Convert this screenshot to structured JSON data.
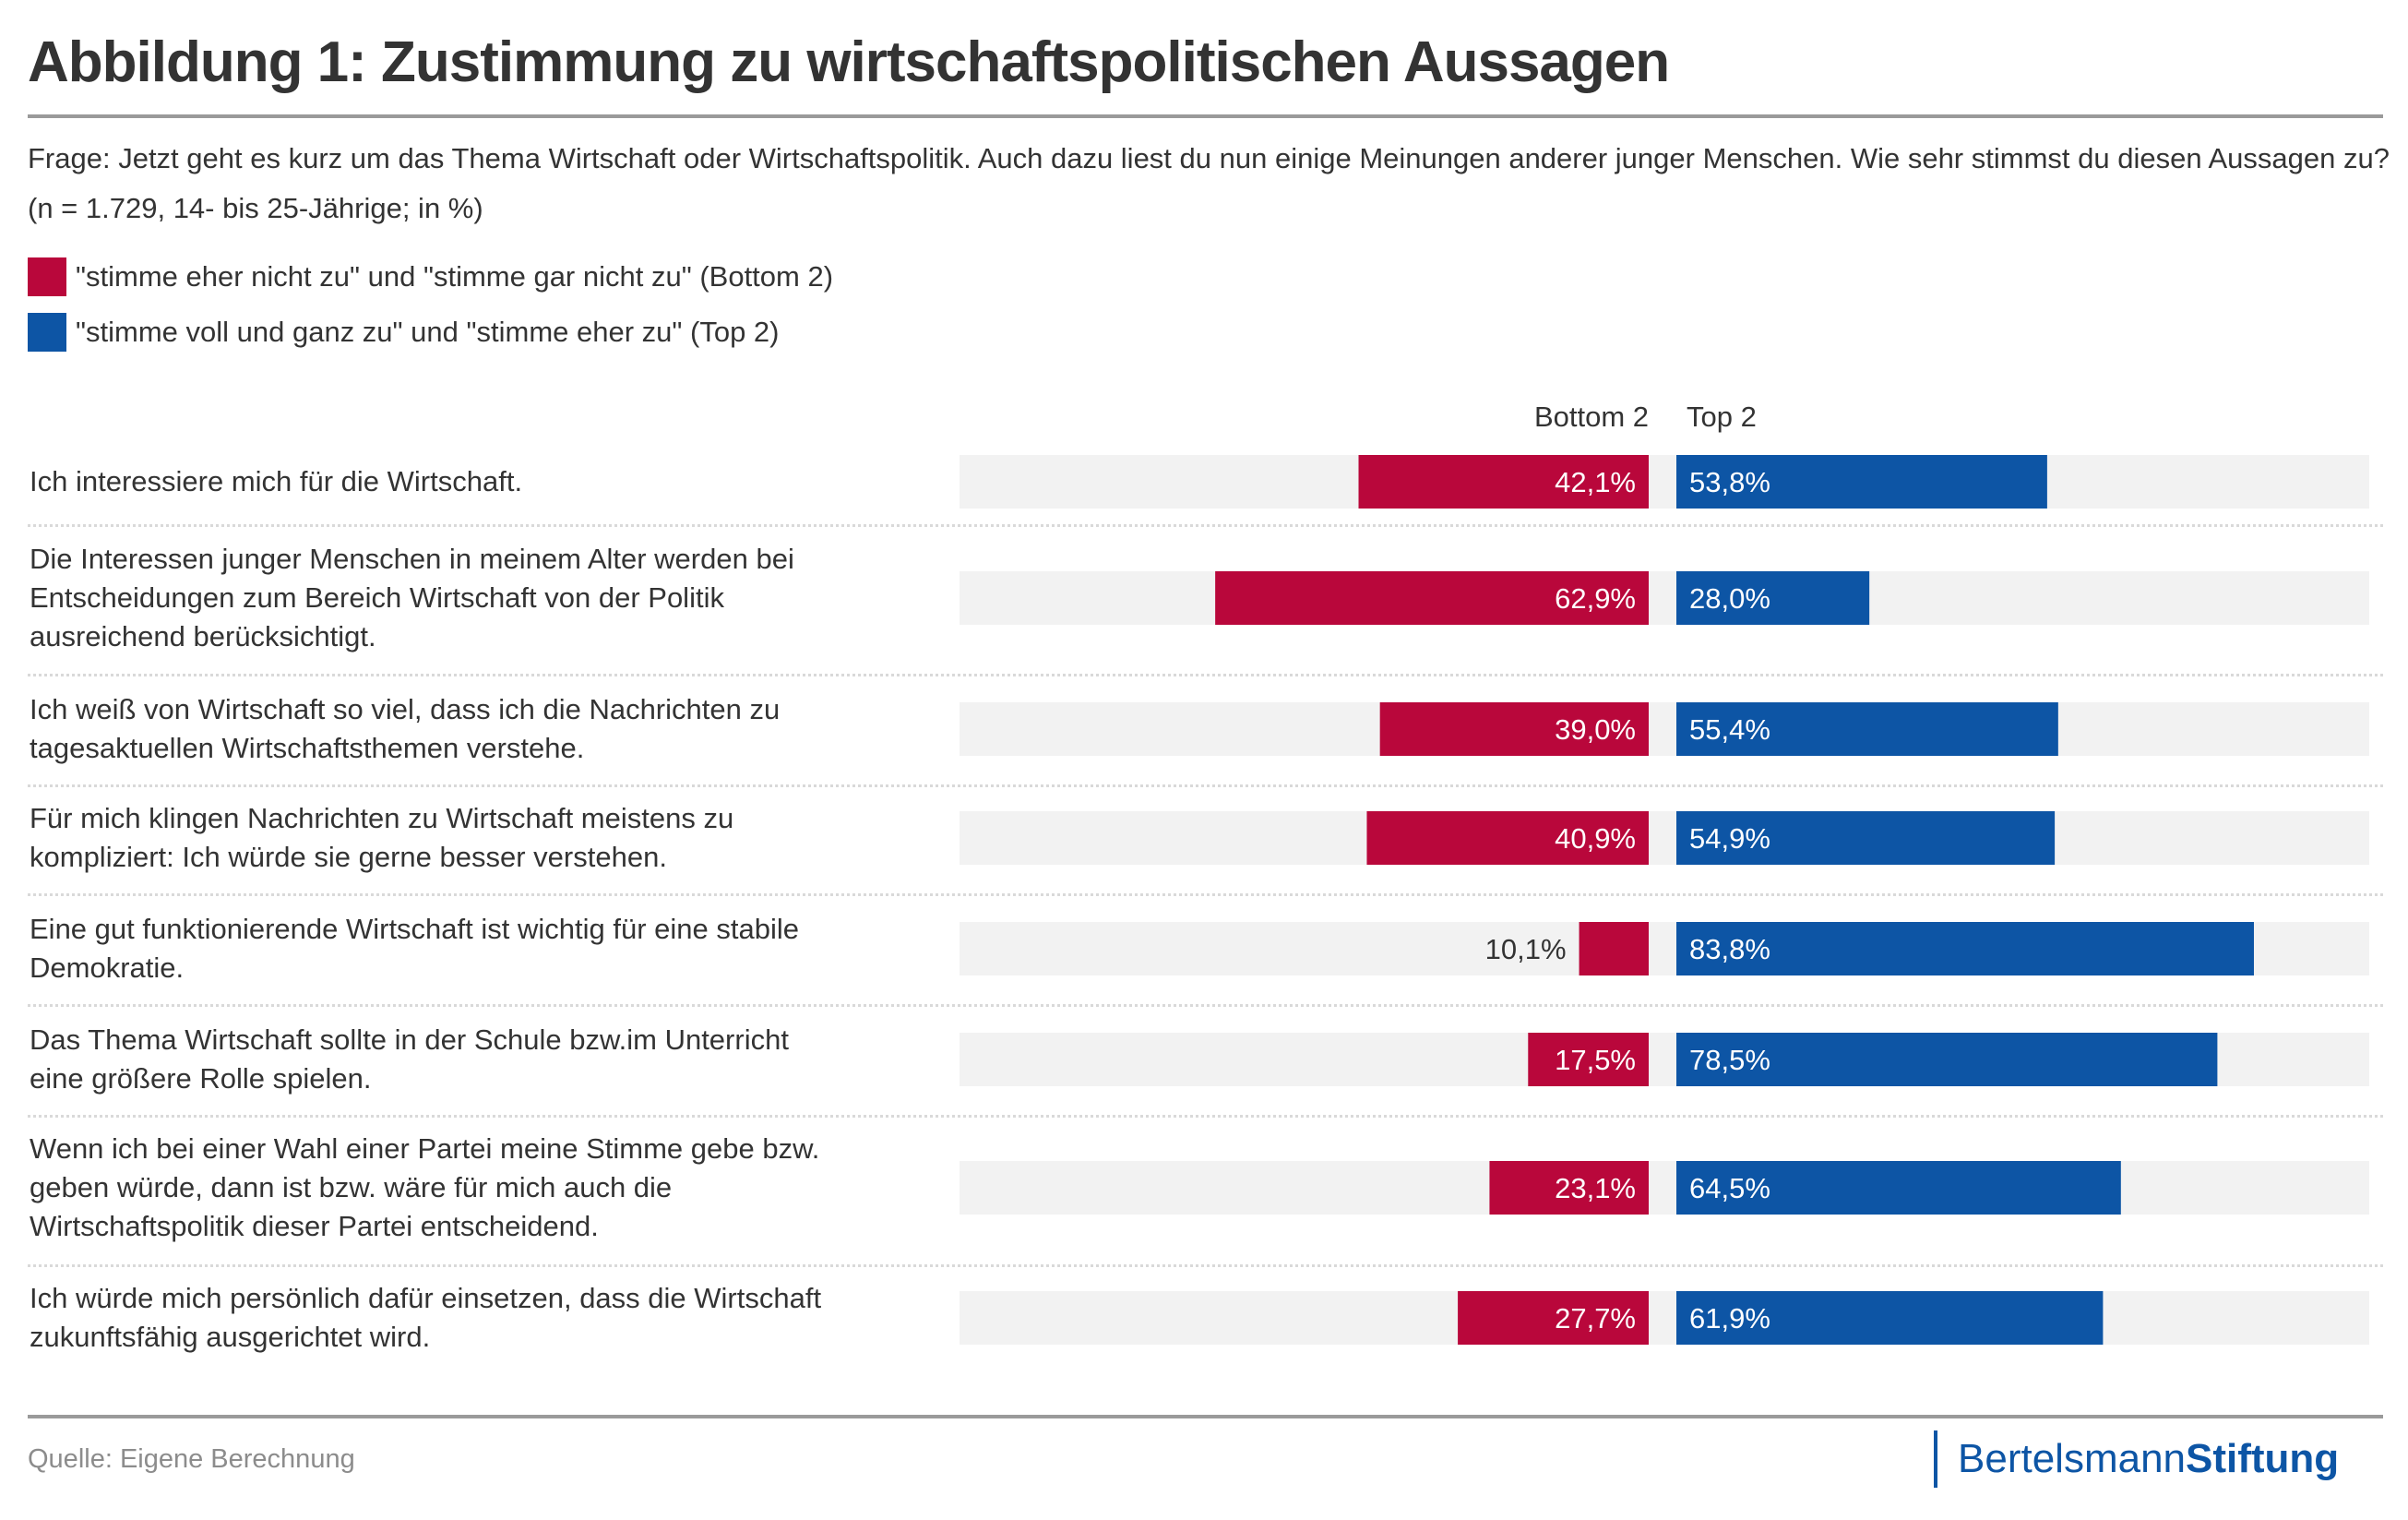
{
  "title": "Abbildung 1: Zustimmung zu wirtschaftspolitischen Aussagen",
  "question": "Frage: Jetzt geht es kurz um das Thema Wirtschaft oder Wirtschaftspolitik. Auch dazu liest du nun einige Meinungen anderer junger Menschen. Wie sehr stimmst du diesen Aussagen zu? (n = 1.729, 14- bis 25-Jährige; in %)",
  "legend": [
    {
      "label": "\"stimme eher nicht zu\" und \"stimme gar nicht zu\" (Bottom 2)",
      "color": "#b9073b"
    },
    {
      "label": "\"stimme voll und ganz zu\" und \"stimme eher zu\" (Top 2)",
      "color": "#0d55a5"
    }
  ],
  "column_headers": {
    "bottom": "Bottom 2",
    "top": "Top 2"
  },
  "source": "Quelle: Eigene Berechnung",
  "logo": {
    "regular": "Bertelsmann",
    "bold": "Stiftung"
  },
  "colors": {
    "bottom": "#b9073b",
    "top": "#0d55a5",
    "track": "#f2f2f2",
    "label_inside": "#ffffff",
    "label_outside": "#333333"
  },
  "chart_data": {
    "type": "bar",
    "orientation": "horizontal-diverging",
    "title": "Abbildung 1: Zustimmung zu wirtschaftspolitischen Aussagen",
    "xlabel": "",
    "ylabel": "",
    "unit": "%",
    "xlim": [
      0,
      100
    ],
    "grid": false,
    "legend_position": "top-left",
    "categories": [
      "Ich interessiere mich für die Wirtschaft.",
      "Die Interessen junger Menschen in meinem Alter werden bei Entscheidungen zum Bereich Wirtschaft von der Politik ausreichend berücksichtigt.",
      "Ich weiß von Wirtschaft so viel, dass ich die Nachrichten zu tagesaktuellen Wirtschaftsthemen verstehe.",
      "Für mich klingen Nachrichten zu Wirtschaft meistens zu kompliziert: Ich würde sie gerne besser verstehen.",
      "Eine gut funktionierende Wirtschaft ist wichtig für eine stabile Demokratie.",
      "Das Thema Wirtschaft sollte in der Schule bzw.im Unterricht eine größere Rolle spielen.",
      "Wenn ich bei einer Wahl einer Partei meine Stimme gebe bzw. geben würde, dann ist bzw. wäre für mich auch die Wirtschaftspolitik dieser Partei entscheidend.",
      "Ich würde mich persönlich dafür einsetzen, dass die Wirtschaft zukunftsfähig ausgerichtet wird."
    ],
    "category_lines": [
      [
        "Ich interessiere mich für die Wirtschaft."
      ],
      [
        "Die Interessen junger Menschen in meinem Alter werden bei",
        "Entscheidungen zum Bereich Wirtschaft von der Politik",
        "ausreichend berücksichtigt."
      ],
      [
        "Ich weiß von Wirtschaft so viel, dass ich die Nachrichten zu",
        "tagesaktuellen Wirtschaftsthemen verstehe."
      ],
      [
        "Für mich klingen Nachrichten zu Wirtschaft meistens zu",
        "kompliziert: Ich würde sie gerne besser verstehen."
      ],
      [
        "Eine gut funktionierende Wirtschaft ist wichtig für eine stabile",
        "Demokratie."
      ],
      [
        "Das Thema Wirtschaft sollte in der Schule bzw.im Unterricht",
        "eine größere Rolle spielen."
      ],
      [
        "Wenn ich bei einer Wahl einer Partei meine Stimme gebe bzw.",
        "geben würde, dann ist bzw. wäre für mich auch die",
        "Wirtschaftspolitik dieser Partei entscheidend."
      ],
      [
        "Ich würde mich persönlich dafür einsetzen, dass die Wirtschaft",
        "zukunftsfähig ausgerichtet wird."
      ]
    ],
    "series": [
      {
        "name": "Bottom 2",
        "values": [
          42.1,
          62.9,
          39.0,
          40.9,
          10.1,
          17.5,
          23.1,
          27.7
        ],
        "labels": [
          "42,1%",
          "62,9%",
          "39,0%",
          "40,9%",
          "10,1%",
          "17,5%",
          "23,1%",
          "27,7%"
        ]
      },
      {
        "name": "Top 2",
        "values": [
          53.8,
          28.0,
          55.4,
          54.9,
          83.8,
          78.5,
          64.5,
          61.9
        ],
        "labels": [
          "53,8%",
          "28,0%",
          "55,4%",
          "54,9%",
          "83,8%",
          "78,5%",
          "64,5%",
          "61,9%"
        ]
      }
    ]
  }
}
